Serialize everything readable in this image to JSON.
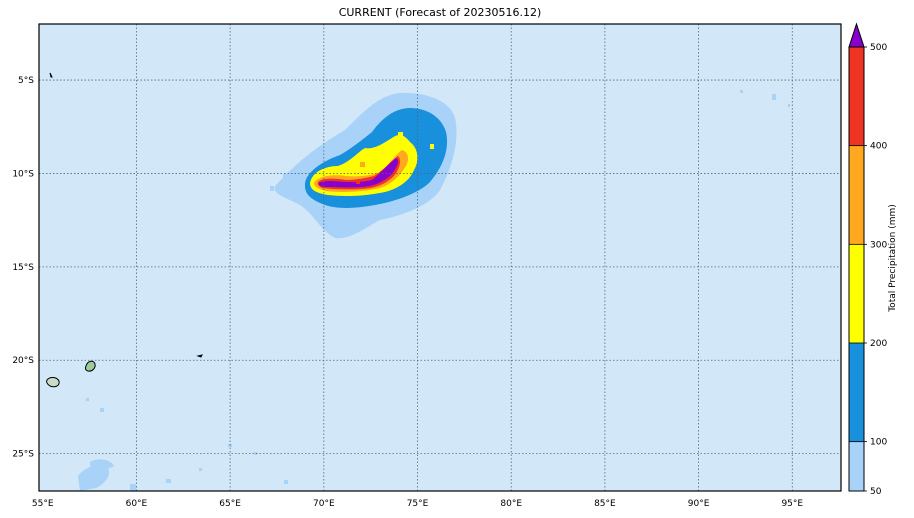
{
  "title": "CURRENT (Forecast of 20230516.12)",
  "map": {
    "lon_range": [
      54.8,
      97.6
    ],
    "lat_range": [
      -27,
      -2
    ],
    "ocean_color": "#d2e7f7",
    "lon_ticks": [
      "55°E",
      "60°E",
      "65°E",
      "70°E",
      "75°E",
      "80°E",
      "85°E",
      "90°E",
      "95°E"
    ],
    "lat_ticks": [
      "5°S",
      "10°S",
      "15°S",
      "20°S",
      "25°S"
    ],
    "lon_values": [
      55,
      60,
      65,
      70,
      75,
      80,
      85,
      90,
      95
    ],
    "lat_values": [
      -5,
      -10,
      -15,
      -20,
      -25
    ],
    "islands": [
      "mauritius",
      "reunion",
      "rodrigues"
    ]
  },
  "colorbar": {
    "label": "Total Precipitation (mm)",
    "tick_labels": [
      "50",
      "100",
      "200",
      "300",
      "400",
      "500"
    ],
    "levels": [
      50,
      100,
      200,
      300,
      400,
      500
    ],
    "colors": [
      "#a8d2f8",
      "#1890dc",
      "#ffff00",
      "#ffa820",
      "#f03424",
      "#8800cc"
    ],
    "extend": "max"
  }
}
